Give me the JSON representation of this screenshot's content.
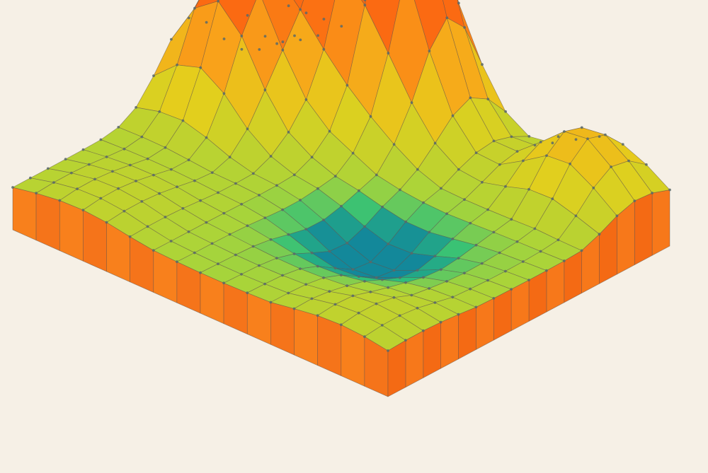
{
  "figure": {
    "type": "3d-terrain-surface",
    "style": "isometric wireframe mesh with vertex dots on a solid base block",
    "background_color": "#f6f0e6",
    "mesh_line_color": "#5c5148",
    "vertex_color": "#5a6a6a",
    "colormap": [
      "#13889a",
      "#2fc07a",
      "#a8d43a",
      "#e4cf1c",
      "#f9a41a",
      "#fb6a12"
    ],
    "grid_resolution": [
      16,
      16
    ],
    "features": {
      "peaks": [
        {
          "label": "",
          "u": 0.32,
          "v": 0.1,
          "height": 1.0
        },
        {
          "label": "",
          "u": 0.12,
          "v": 0.38,
          "height": 0.8
        },
        {
          "label": "",
          "u": 0.43,
          "v": 0.12,
          "height": 0.6
        },
        {
          "label": "",
          "u": 0.85,
          "v": 0.12,
          "height": 0.3
        },
        {
          "label": "",
          "u": 0.25,
          "v": 0.22,
          "height": 0.4
        }
      ],
      "basin": {
        "u": 0.64,
        "v": 0.58,
        "depth": 0.9
      }
    }
  }
}
